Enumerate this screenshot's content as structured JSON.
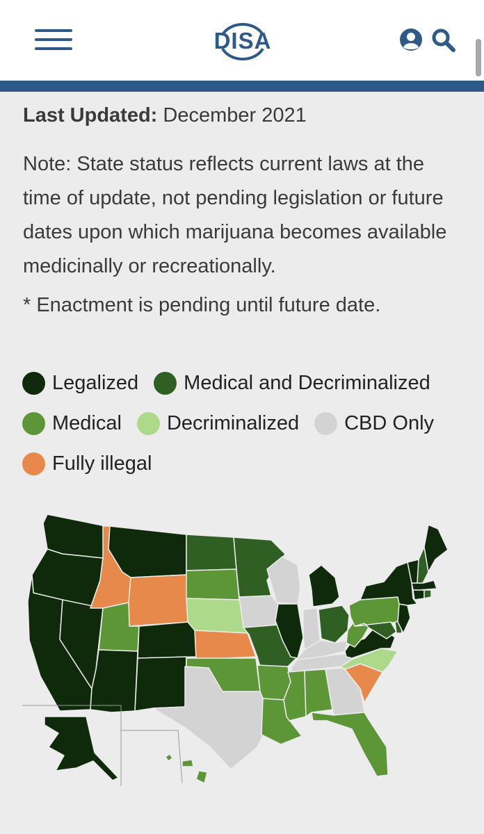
{
  "header": {
    "logo_text": "DISA",
    "menu_icon": "hamburger-menu-icon",
    "account_icon": "user-circle-icon",
    "search_icon": "search-icon",
    "brand_color": "#2d5a88"
  },
  "info": {
    "last_updated_label": "Last Updated:",
    "last_updated_value": "December 2021",
    "note": "Note: State status reflects current laws at the time of update, not pending legislation or future dates upon which marijuana becomes available medicinally or recreationally.",
    "enactment_note": "* Enactment is pending until future date."
  },
  "legend": {
    "legalized": {
      "label": "Legalized",
      "color": "#0f2a0a"
    },
    "med_decrim": {
      "label": "Medical and Decriminalized",
      "color": "#2f5f23"
    },
    "medical": {
      "label": "Medical",
      "color": "#5c9636"
    },
    "decriminalized": {
      "label": "Decriminalized",
      "color": "#acd98a"
    },
    "cbd_only": {
      "label": "CBD Only",
      "color": "#d3d3d3"
    },
    "illegal": {
      "label": "Fully illegal",
      "color": "#e6894a"
    }
  },
  "map": {
    "states": {
      "Legalized": [
        "WA",
        "OR",
        "CA",
        "NV",
        "AZ",
        "MT",
        "CO",
        "NM",
        "IL",
        "MI",
        "VA",
        "NY",
        "NJ",
        "VT",
        "ME",
        "MA",
        "CT",
        "AK"
      ],
      "Medical and Decriminalized": [
        "ND",
        "MN",
        "MO",
        "OH",
        "NH",
        "MD",
        "DE",
        "RI"
      ],
      "Medical": [
        "UT",
        "SD",
        "OK",
        "AR",
        "LA",
        "MS",
        "AL",
        "FL",
        "PA",
        "WV",
        "HI"
      ],
      "Decriminalized": [
        "NE",
        "NC"
      ],
      "CBD Only": [
        "WI",
        "IA",
        "TX",
        "IN",
        "KY",
        "TN",
        "GA"
      ],
      "Fully illegal": [
        "ID",
        "WY",
        "KS",
        "SC"
      ]
    }
  }
}
